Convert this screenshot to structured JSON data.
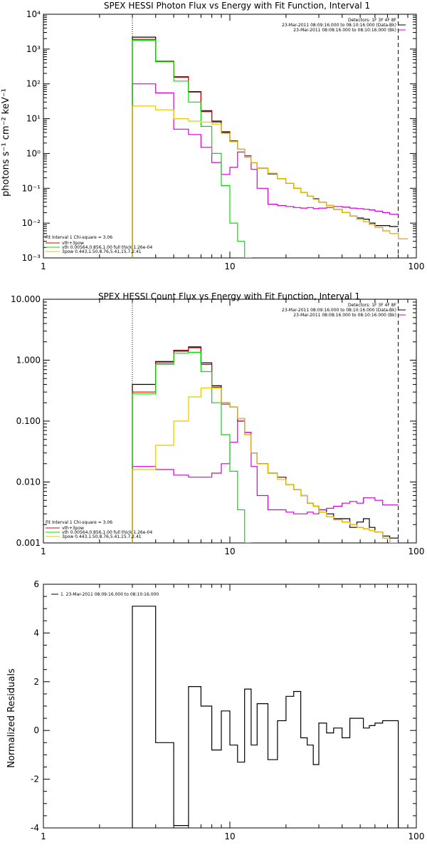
{
  "panels": [
    {
      "title": "SPEX HESSI Photon Flux vs Energy with Fit Function, Interval 1",
      "ylabel": "photons s⁻¹ cm⁻² keV⁻¹",
      "legend_right": [
        "Detectors: 1F 3F 4F 8F",
        "23-Mar-2011 08:09:16.000 to 08:10:16.000 (Data-Bk)",
        "23-Mar-2011 08:08:16.000 to 08:10:16.000 (Bk)"
      ],
      "legend_left": [
        "Fit Interval 1   Chi-square = 3.06",
        "vth+3pow",
        "vth 0.00564,0.856,1.00  full thick 1.26e-04",
        "3pow 0.443,1.50,8.76,5.41,15.7,2.41"
      ]
    },
    {
      "title": "SPEX HESSI Count Flux vs Energy with Fit Function, Interval 1",
      "ylabel": "",
      "legend_right": [
        "Detectors: 1F 3F 4F 8F",
        "23-Mar-2011 08:09:16.000 to 08:10:16.000 (Data-Bk)",
        "23-Mar-2011 08:08:16.000 to 08:10:16.000 (Bk)"
      ],
      "legend_left": [
        "Fit Interval 1   Chi-square = 3.06",
        "vth+3pow",
        "vth 0.00564,0.856,1.00  full thick 1.26e-04",
        "3pow 0.443,1.50,8.76,5.41,15.7,2.41"
      ]
    },
    {
      "title": "",
      "ylabel": "Normalized Residuals",
      "legend_right": [],
      "legend_left": [
        "1. 23-Mar-2011 08:09:16.000 to 08:10:16.000"
      ]
    }
  ],
  "chart_data": [
    {
      "type": "line",
      "title": "SPEX HESSI Photon Flux vs Energy with Fit Function, Interval 1",
      "xlabel": "",
      "ylabel": "photons s⁻¹ cm⁻² keV⁻¹",
      "xscale": "log",
      "yscale": "log",
      "xlim": [
        1,
        100
      ],
      "ylim": [
        0.001,
        10000
      ],
      "xticks": [
        "1",
        "10",
        "100"
      ],
      "yticks": [
        "10⁻³",
        "10⁻²",
        "10⁻¹",
        "10⁰",
        "10¹",
        "10²",
        "10³",
        "10⁴"
      ],
      "vlines": [
        {
          "x": 3.0,
          "style": "dotted"
        },
        {
          "x": 80.0,
          "style": "dashed"
        }
      ],
      "bin_edges": [
        3,
        4,
        5,
        6,
        7,
        8,
        9,
        10,
        11,
        12,
        13,
        14,
        16,
        18,
        20,
        22,
        24,
        26,
        28,
        30,
        33,
        36,
        40,
        44,
        48,
        52,
        56,
        60,
        66,
        72,
        80,
        90
      ],
      "series": [
        {
          "name": "Data-Bk",
          "color": "#000000",
          "values": [
            2200,
            440,
            160,
            60,
            17,
            8.5,
            4.2,
            2.3,
            1.35,
            0.85,
            0.55,
            0.38,
            0.26,
            0.19,
            0.14,
            0.1,
            0.075,
            0.06,
            0.05,
            0.04,
            0.032,
            0.025,
            0.02,
            0.016,
            0.014,
            0.013,
            0.01,
            0.0085,
            0.0085,
            0.008
          ]
        },
        {
          "name": "Bk",
          "color": "#d400d4",
          "values": [
            100,
            55,
            5,
            3.5,
            1.5,
            0.55,
            0.25,
            0.4,
            1.1,
            0.8,
            0.35,
            0.1,
            0.035,
            0.032,
            0.03,
            0.028,
            0.027,
            0.028,
            0.026,
            0.027,
            0.028,
            0.03,
            0.029,
            0.027,
            0.026,
            0.025,
            0.024,
            0.022,
            0.02,
            0.018
          ]
        },
        {
          "name": "vth+3pow",
          "color": "#e00000",
          "values": [
            1900,
            450,
            155,
            58,
            16,
            8.0,
            4.0,
            2.2,
            1.35,
            0.82,
            0.55,
            0.38,
            0.27,
            0.19,
            0.14,
            0.1,
            0.075,
            0.06,
            0.048,
            0.04,
            0.032,
            0.025,
            0.02,
            0.016,
            0.013,
            0.011,
            0.009,
            0.0075,
            0.006,
            0.005,
            0.0035
          ]
        },
        {
          "name": "vth",
          "color": "#00e000",
          "values": [
            1800,
            430,
            120,
            30,
            6,
            1.0,
            0.12,
            0.01,
            0.003,
            0.001,
            0.0005
          ]
        },
        {
          "name": "3pow",
          "color": "#e6c800",
          "values": [
            23,
            18,
            10,
            8.5,
            8.0,
            7.0,
            3.8,
            2.2,
            1.35,
            0.82,
            0.55,
            0.38,
            0.27,
            0.19,
            0.14,
            0.1,
            0.075,
            0.06,
            0.048,
            0.04,
            0.032,
            0.025,
            0.02,
            0.016,
            0.013,
            0.011,
            0.009,
            0.0075,
            0.006,
            0.005,
            0.0035
          ]
        }
      ]
    },
    {
      "type": "line",
      "title": "SPEX HESSI Count Flux vs Energy with Fit Function, Interval 1",
      "xlabel": "",
      "ylabel": "",
      "xscale": "log",
      "yscale": "log",
      "xlim": [
        1,
        100
      ],
      "ylim": [
        0.001,
        10
      ],
      "xticks": [
        "1",
        "10",
        "100"
      ],
      "yticks": [
        "0.001",
        "0.010",
        "0.100",
        "1.000",
        "10.000"
      ],
      "vlines": [
        {
          "x": 3.0,
          "style": "dotted"
        },
        {
          "x": 80.0,
          "style": "dashed"
        }
      ],
      "bin_edges": [
        3,
        4,
        5,
        6,
        7,
        8,
        9,
        10,
        11,
        12,
        13,
        14,
        16,
        18,
        20,
        22,
        24,
        26,
        28,
        30,
        33,
        36,
        40,
        44,
        48,
        52,
        56,
        60,
        66,
        72,
        80,
        90
      ],
      "series": [
        {
          "name": "Data-Bk",
          "color": "#000000",
          "values": [
            0.4,
            0.95,
            1.45,
            1.65,
            0.9,
            0.38,
            0.2,
            0.17,
            0.11,
            0.065,
            0.03,
            0.02,
            0.014,
            0.012,
            0.009,
            0.0075,
            0.006,
            0.0045,
            0.004,
            0.0035,
            0.003,
            0.0025,
            0.0025,
            0.0018,
            0.0022,
            0.0025,
            0.0018,
            0.0015,
            0.0013,
            0.0012
          ]
        },
        {
          "name": "Bk",
          "color": "#d400d4",
          "values": [
            0.018,
            0.016,
            0.013,
            0.012,
            0.012,
            0.014,
            0.02,
            0.045,
            0.1,
            0.065,
            0.018,
            0.006,
            0.0035,
            0.0035,
            0.0032,
            0.003,
            0.003,
            0.0032,
            0.003,
            0.0035,
            0.0037,
            0.004,
            0.0045,
            0.0048,
            0.0045,
            0.0055,
            0.0055,
            0.005,
            0.0042,
            0.0042
          ]
        },
        {
          "name": "vth+3pow",
          "color": "#e00000",
          "values": [
            0.3,
            0.9,
            1.4,
            1.6,
            0.85,
            0.36,
            0.19,
            0.17,
            0.1,
            0.06,
            0.03,
            0.02,
            0.014,
            0.012,
            0.009,
            0.0075,
            0.006,
            0.0045,
            0.004,
            0.0032,
            0.0027,
            0.0024,
            0.0022,
            0.002,
            0.0018,
            0.0017,
            0.0016,
            0.0015,
            0.0012,
            0.001
          ]
        },
        {
          "name": "vth",
          "color": "#00e000",
          "values": [
            0.28,
            0.85,
            1.3,
            1.35,
            0.65,
            0.2,
            0.06,
            0.015,
            0.0035,
            0.001
          ]
        },
        {
          "name": "3pow",
          "color": "#e6c800",
          "values": [
            0.016,
            0.04,
            0.1,
            0.25,
            0.35,
            0.35,
            0.2,
            0.17,
            0.11,
            0.06,
            0.03,
            0.02,
            0.014,
            0.011,
            0.009,
            0.0075,
            0.006,
            0.0045,
            0.004,
            0.0032,
            0.0027,
            0.0024,
            0.0022,
            0.002,
            0.0018,
            0.0017,
            0.0016,
            0.0015,
            0.0012,
            0.001
          ]
        }
      ]
    },
    {
      "type": "line",
      "title": "",
      "xlabel": "",
      "ylabel": "Normalized Residuals",
      "xscale": "log",
      "yscale": "linear",
      "xlim": [
        1,
        100
      ],
      "ylim": [
        -4,
        6
      ],
      "xticks": [
        "1",
        "10",
        "100"
      ],
      "yticks": [
        "-4",
        "-2",
        "0",
        "2",
        "4",
        "6"
      ],
      "bin_edges": [
        3,
        4,
        5,
        6,
        7,
        8,
        9,
        10,
        11,
        12,
        13,
        14,
        16,
        18,
        20,
        22,
        24,
        26,
        28,
        30,
        33,
        36,
        40,
        44,
        48,
        52,
        56,
        60,
        66,
        72,
        80
      ],
      "series": [
        {
          "name": "1. 23-Mar-2011 08:09:16.000 to 08:10:16.000",
          "color": "#000000",
          "values": [
            5.1,
            -0.5,
            -3.9,
            1.8,
            1.0,
            -0.8,
            0.8,
            -0.6,
            -1.3,
            1.7,
            -0.6,
            1.1,
            -1.2,
            0.4,
            1.4,
            1.6,
            -0.3,
            -0.6,
            -1.4,
            0.3,
            -0.1,
            0.1,
            -0.3,
            0.5,
            0.5,
            0.1,
            0.2,
            0.3,
            0.4,
            0.4
          ]
        }
      ]
    }
  ]
}
